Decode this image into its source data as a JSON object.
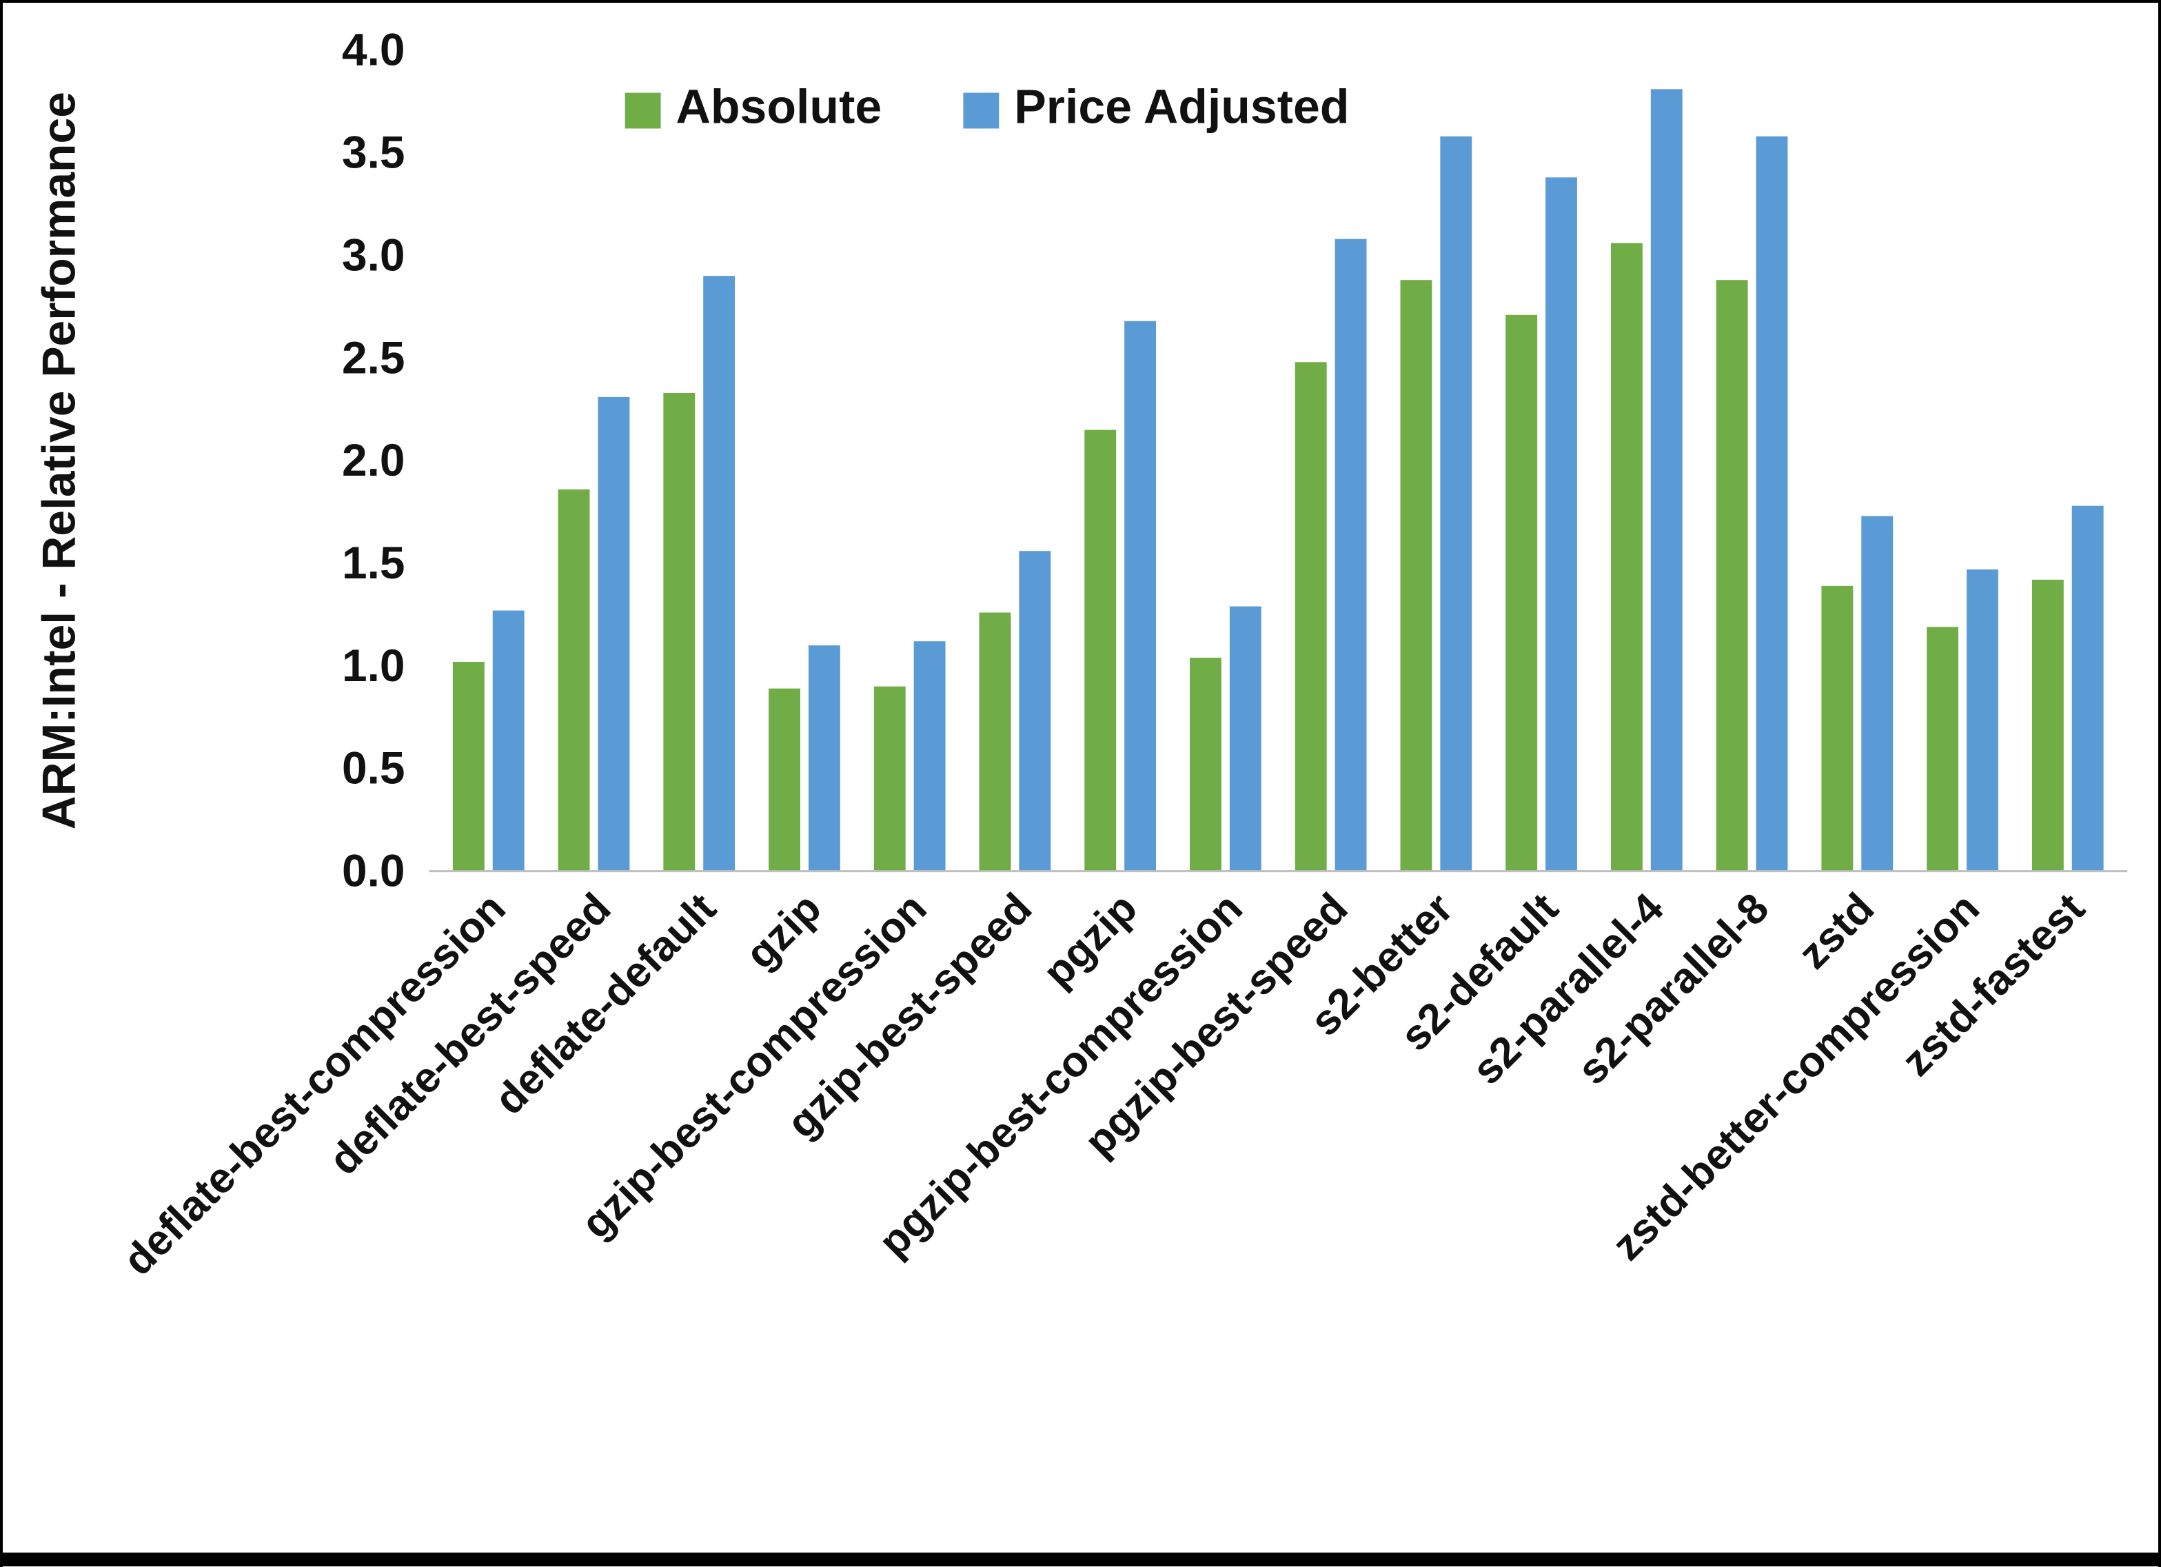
{
  "chart_data": {
    "type": "bar",
    "title": "",
    "xlabel": "",
    "ylabel": "ARM:Intel - Relative Performance",
    "ylim": [
      0.0,
      4.0
    ],
    "ytick_step": 0.5,
    "ytick_decimals": 1,
    "grid": false,
    "legend_position": "top-center",
    "categories": [
      "deflate-best-compression",
      "deflate-best-speed",
      "deflate-default",
      "gzip",
      "gzip-best-compression",
      "gzip-best-speed",
      "pgzip",
      "pgzip-best-compression",
      "pgzip-best-speed",
      "s2-better",
      "s2-default",
      "s2-parallel-4",
      "s2-parallel-8",
      "zstd",
      "zstd-better-compression",
      "zstd-fastest"
    ],
    "series": [
      {
        "name": "Absolute",
        "color": "#70AD47",
        "values": [
          1.02,
          1.86,
          2.33,
          0.89,
          0.9,
          1.26,
          2.15,
          1.04,
          2.48,
          2.88,
          2.71,
          3.06,
          2.88,
          1.39,
          1.19,
          1.42
        ]
      },
      {
        "name": "Price Adjusted",
        "color": "#5B9BD5",
        "values": [
          1.27,
          2.31,
          2.9,
          1.1,
          1.12,
          1.56,
          2.68,
          1.29,
          3.08,
          3.58,
          3.38,
          3.81,
          3.58,
          1.73,
          1.47,
          1.78
        ]
      }
    ]
  },
  "colors": {
    "axis_line": "#bfbfbf",
    "text": "#111111",
    "frame_border": "#000000",
    "bottom_band": "#000000"
  }
}
